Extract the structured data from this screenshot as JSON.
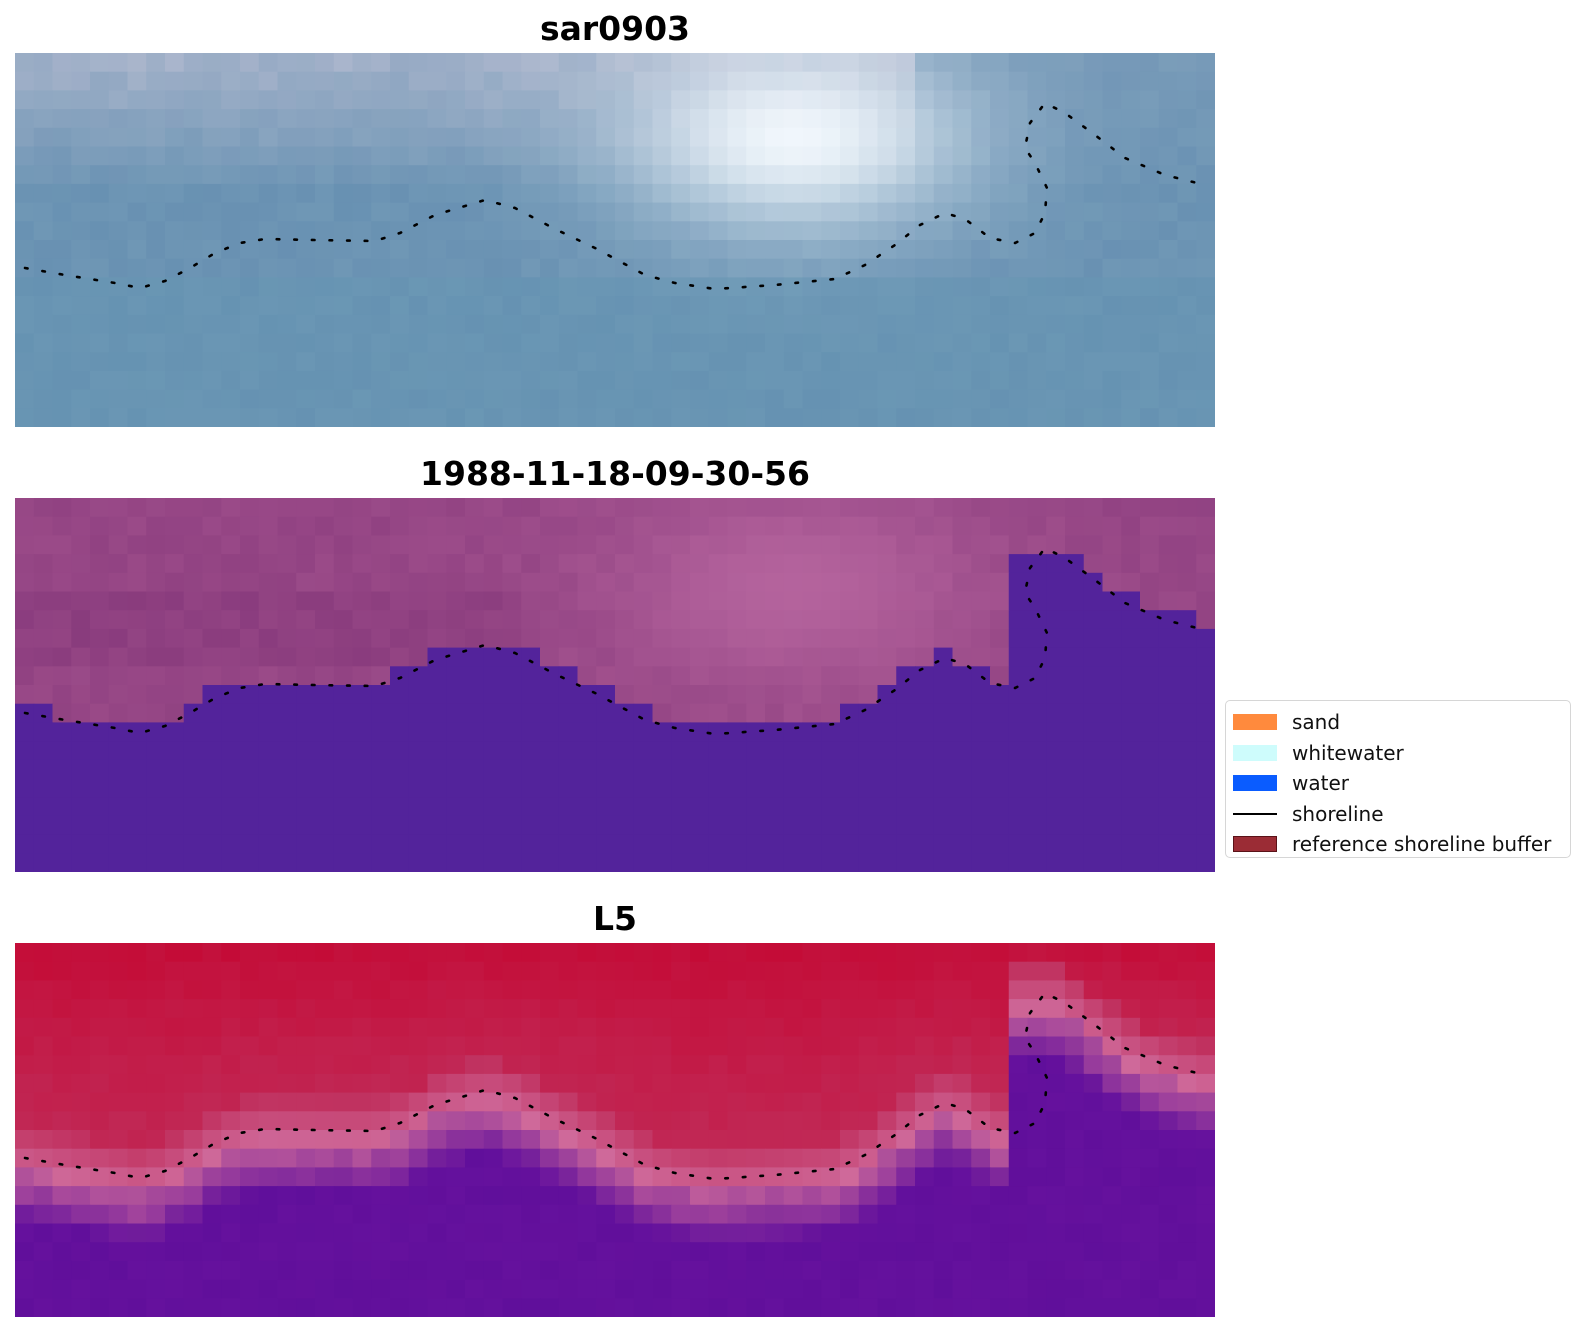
{
  "panels": [
    {
      "title": "sar0903",
      "style": "rgb",
      "colors": {
        "base": "#6f97b5",
        "highlight": "#f6fbff",
        "haze": "#c4c3d6",
        "dark": "#5d86ad"
      }
    },
    {
      "title": "1988-11-18-09-30-56",
      "style": "classified",
      "colors": {
        "land": "#9a4a88",
        "land_light": "#b7669f",
        "water": "#53239b"
      }
    },
    {
      "title": "L5",
      "style": "index",
      "colors": {
        "top": "#c40a35",
        "mid": "#c0305e",
        "edge": "#cf6a9b",
        "bottom": "#65119d"
      }
    }
  ],
  "shoreline": {
    "color": "#000000",
    "style": "dotted"
  },
  "legend": {
    "items": [
      {
        "label": "sand",
        "color": "#ff8a3d",
        "kind": "patch"
      },
      {
        "label": "whitewater",
        "color": "#cefcfc",
        "kind": "patch"
      },
      {
        "label": "water",
        "color": "#0a5cff",
        "kind": "patch"
      },
      {
        "label": "shoreline",
        "color": "#000000",
        "kind": "line"
      },
      {
        "label": "reference shoreline buffer",
        "color": "#9b2c35",
        "kind": "patch-outlined"
      }
    ]
  }
}
